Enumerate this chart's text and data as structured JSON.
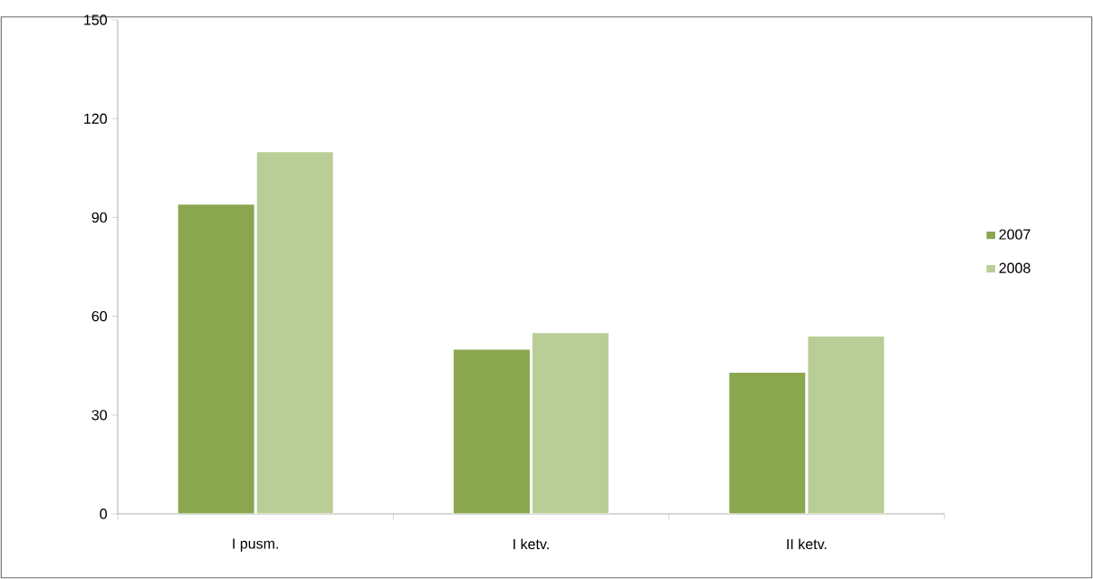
{
  "chart_data": {
    "type": "bar",
    "categories": [
      "I pusm.",
      "I ketv.",
      "II ketv."
    ],
    "series": [
      {
        "name": "2007",
        "color": "#8aa64f",
        "values": [
          94,
          50,
          43
        ]
      },
      {
        "name": "2008",
        "color": "#b9cd96",
        "values": [
          110,
          55,
          54
        ]
      }
    ],
    "ylim": [
      0,
      150
    ],
    "yticks": [
      0,
      30,
      60,
      90,
      120,
      150
    ],
    "grid": false,
    "legend": "right"
  }
}
